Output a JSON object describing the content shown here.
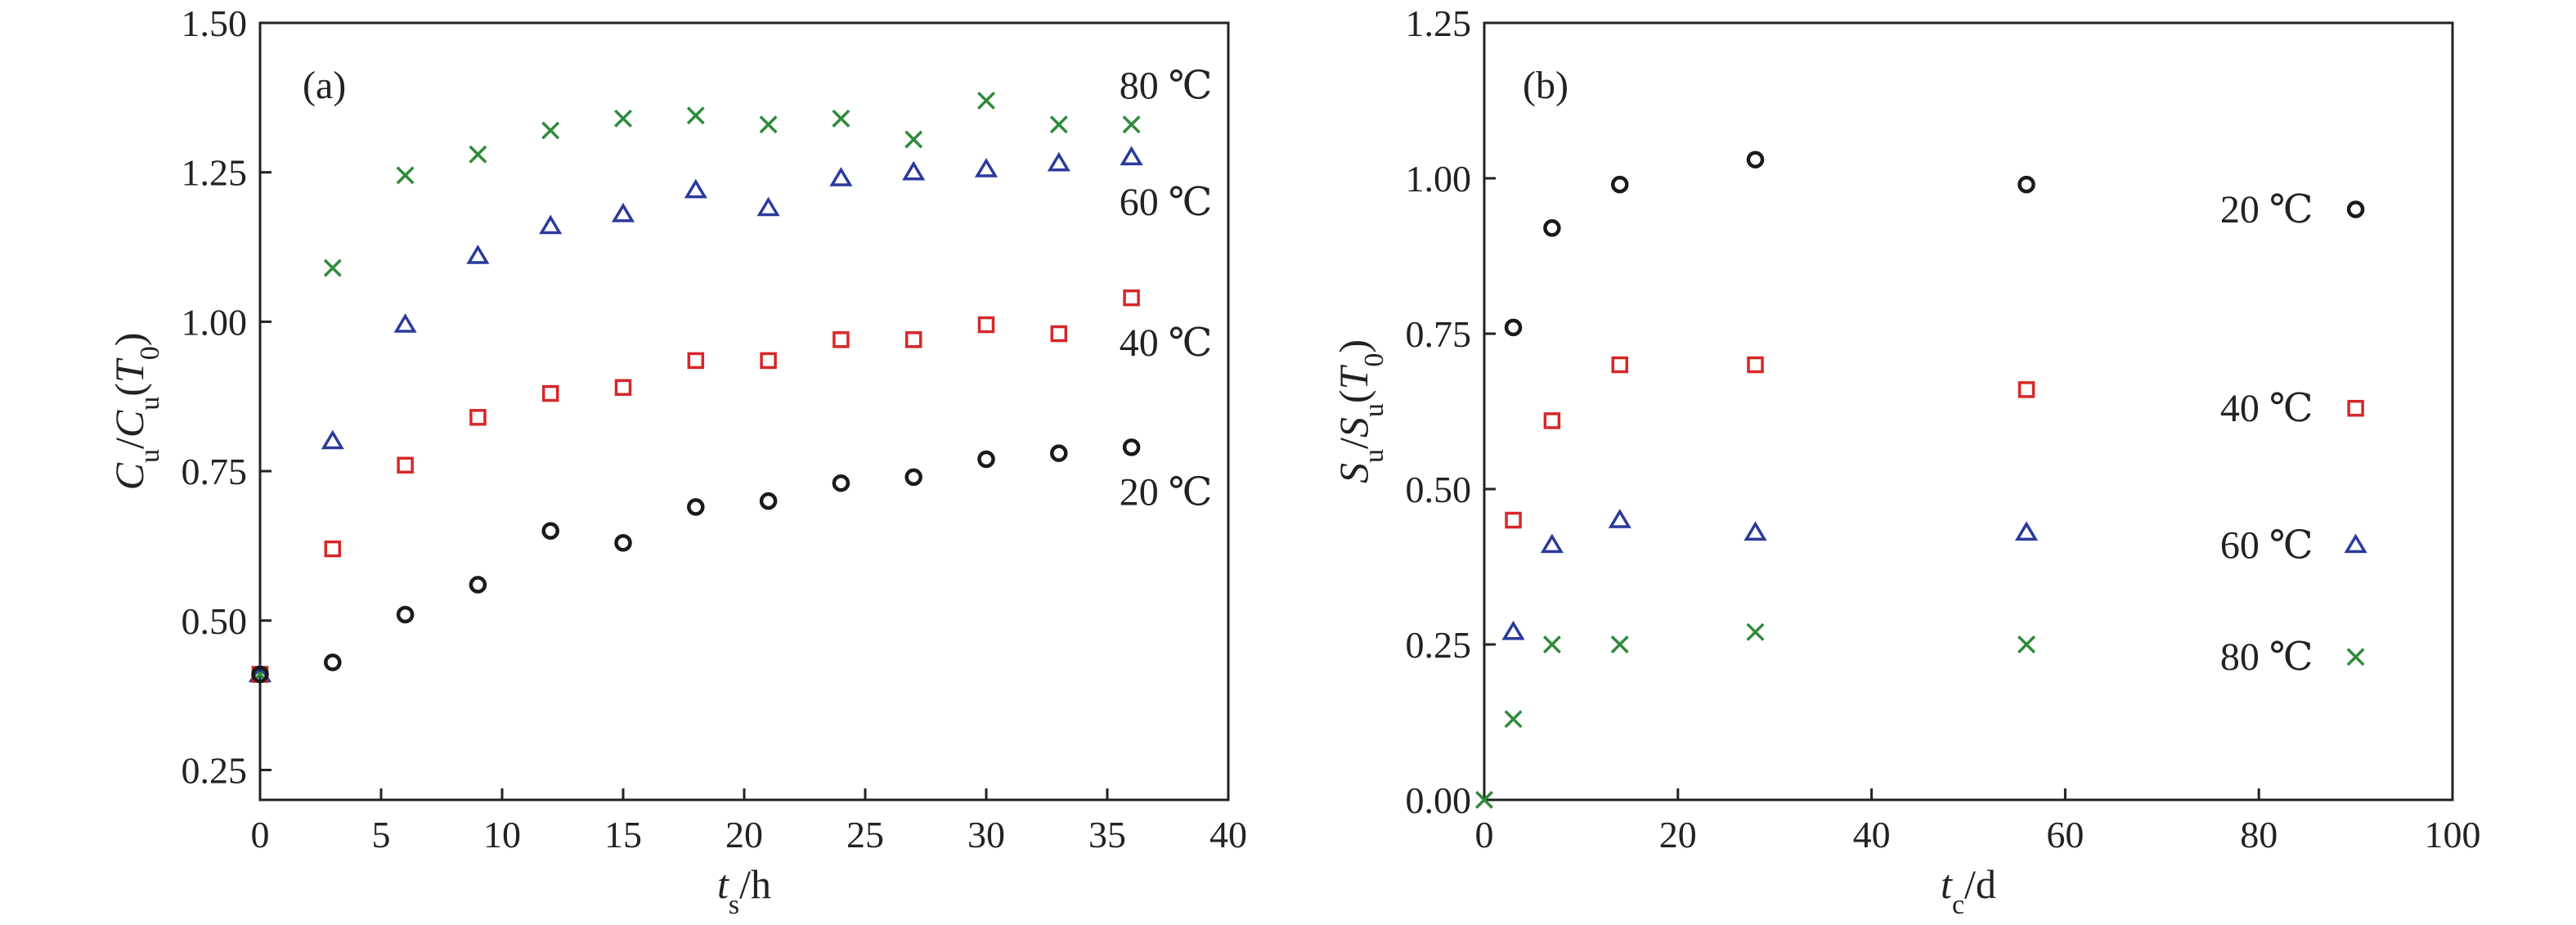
{
  "colors": {
    "20": "#1a1a1a",
    "40": "#d62728",
    "60": "#2a3a9c",
    "80": "#2e8b3a"
  },
  "chart_data": [
    {
      "type": "scatter",
      "panel_label": "(a)",
      "xlabel": {
        "main": "t",
        "sub": "s",
        "unit": "/h"
      },
      "ylabel": {
        "parts": [
          [
            "C",
            "it"
          ],
          [
            "u",
            "sub"
          ],
          [
            "/",
            ""
          ],
          [
            "C",
            "it"
          ],
          [
            "u",
            "sub"
          ],
          [
            "(",
            ""
          ],
          [
            "T",
            "it"
          ],
          [
            "0",
            "sub"
          ],
          [
            ")",
            ""
          ]
        ]
      },
      "xlim": [
        0,
        40
      ],
      "ylim": [
        0.2,
        1.5
      ],
      "xticks": [
        0,
        5,
        10,
        15,
        20,
        25,
        30,
        35,
        40
      ],
      "yticks": [
        0.25,
        0.5,
        0.75,
        1.0,
        1.25,
        1.5
      ],
      "ytick_labels": [
        "0.25",
        "0.50",
        "0.75",
        "1.00",
        "1.25",
        "1.50"
      ],
      "grid": false,
      "series": [
        {
          "name": "80 ℃",
          "key": "80",
          "marker": "x",
          "x": [
            0,
            3,
            6,
            9,
            12,
            15,
            18,
            21,
            24,
            27,
            30,
            33,
            36
          ],
          "y": [
            0.41,
            1.09,
            1.245,
            1.28,
            1.32,
            1.34,
            1.345,
            1.33,
            1.34,
            1.305,
            1.37,
            1.33,
            1.33
          ]
        },
        {
          "name": "60 ℃",
          "key": "60",
          "marker": "triangle",
          "x": [
            0,
            3,
            6,
            9,
            12,
            15,
            18,
            21,
            24,
            27,
            30,
            33,
            36
          ],
          "y": [
            0.41,
            0.8,
            0.995,
            1.11,
            1.16,
            1.18,
            1.22,
            1.19,
            1.24,
            1.25,
            1.255,
            1.265,
            1.275
          ]
        },
        {
          "name": "40 ℃",
          "key": "40",
          "marker": "square",
          "x": [
            0,
            3,
            6,
            9,
            12,
            15,
            18,
            21,
            24,
            27,
            30,
            33,
            36
          ],
          "y": [
            0.41,
            0.62,
            0.76,
            0.84,
            0.88,
            0.89,
            0.935,
            0.935,
            0.97,
            0.97,
            0.995,
            0.98,
            1.04
          ]
        },
        {
          "name": "20 ℃",
          "key": "20",
          "marker": "circle",
          "x": [
            0,
            3,
            6,
            9,
            12,
            15,
            18,
            21,
            24,
            27,
            30,
            33,
            36
          ],
          "y": [
            0.41,
            0.43,
            0.51,
            0.56,
            0.65,
            0.63,
            0.69,
            0.7,
            0.73,
            0.74,
            0.77,
            0.78,
            0.79
          ]
        }
      ],
      "annotations": [
        {
          "text": "80 ℃",
          "key": "80",
          "x": 35.5,
          "y": 1.395
        },
        {
          "text": "60 ℃",
          "key": "60",
          "x": 35.5,
          "y": 1.2
        },
        {
          "text": "40 ℃",
          "key": "40",
          "x": 35.5,
          "y": 0.965
        },
        {
          "text": "20 ℃",
          "key": "20",
          "x": 35.5,
          "y": 0.715
        }
      ]
    },
    {
      "type": "scatter",
      "panel_label": "(b)",
      "xlabel": {
        "main": "t",
        "sub": "c",
        "unit": "/d"
      },
      "ylabel": {
        "parts": [
          [
            "S",
            "it"
          ],
          [
            "u",
            "sub"
          ],
          [
            "/",
            ""
          ],
          [
            "S",
            "it"
          ],
          [
            "u",
            "sub"
          ],
          [
            "(",
            ""
          ],
          [
            "T",
            "it"
          ],
          [
            "0",
            "sub"
          ],
          [
            ")",
            ""
          ]
        ]
      },
      "xlim": [
        0,
        100
      ],
      "ylim": [
        0,
        1.25
      ],
      "xticks": [
        0,
        20,
        40,
        60,
        80,
        100
      ],
      "yticks": [
        0,
        0.25,
        0.5,
        0.75,
        1.0,
        1.25
      ],
      "ytick_labels": [
        "0.00",
        "0.25",
        "0.50",
        "0.75",
        "1.00",
        "1.25"
      ],
      "grid": false,
      "series": [
        {
          "name": "20 ℃",
          "key": "20",
          "marker": "circle",
          "x": [
            3,
            7,
            14,
            28,
            56,
            90
          ],
          "y": [
            0.76,
            0.92,
            0.99,
            1.03,
            0.99,
            0.95
          ]
        },
        {
          "name": "40 ℃",
          "key": "40",
          "marker": "square",
          "x": [
            3,
            7,
            14,
            28,
            56,
            90
          ],
          "y": [
            0.45,
            0.61,
            0.7,
            0.7,
            0.66,
            0.63
          ]
        },
        {
          "name": "60 ℃",
          "key": "60",
          "marker": "triangle",
          "x": [
            3,
            7,
            14,
            28,
            56,
            90
          ],
          "y": [
            0.27,
            0.41,
            0.45,
            0.43,
            0.43,
            0.41
          ]
        },
        {
          "name": "80 ℃",
          "key": "80",
          "marker": "x",
          "x": [
            0,
            3,
            7,
            14,
            28,
            56,
            90
          ],
          "y": [
            0.0,
            0.13,
            0.25,
            0.25,
            0.27,
            0.25,
            0.23
          ]
        }
      ],
      "annotations": [
        {
          "text": "20 ℃",
          "key": "20",
          "x": 76,
          "y": 0.95
        },
        {
          "text": "40 ℃",
          "key": "40",
          "x": 76,
          "y": 0.63
        },
        {
          "text": "60 ℃",
          "key": "60",
          "x": 76,
          "y": 0.41
        },
        {
          "text": "80 ℃",
          "key": "80",
          "x": 76,
          "y": 0.23
        }
      ]
    }
  ]
}
